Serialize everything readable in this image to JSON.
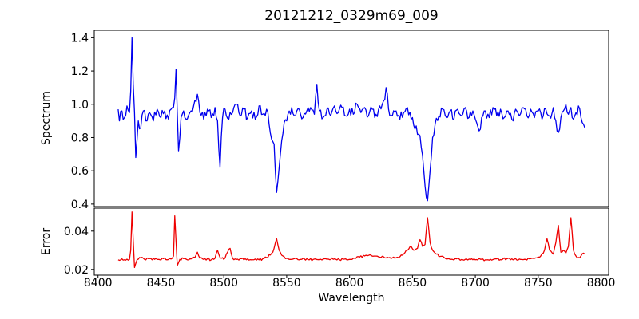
{
  "chart_data": {
    "type": "line",
    "title": "20121212_0329m69_009",
    "xlabel": "Wavelength",
    "xlim": [
      8397,
      8806
    ],
    "xtick_values": [
      8400,
      8450,
      8500,
      8550,
      8600,
      8650,
      8700,
      8750,
      8800
    ],
    "xtick_labels": [
      "8400",
      "8450",
      "8500",
      "8550",
      "8600",
      "8650",
      "8700",
      "8750",
      "8800"
    ],
    "grid": false,
    "legend": "none",
    "frame_color": "#000000",
    "noise_seed": 1234,
    "panels": [
      {
        "name": "spectrum",
        "ylabel": "Spectrum",
        "ylim": [
          0.385,
          1.445
        ],
        "ytick_values": [
          0.4,
          0.6,
          0.8,
          1.0,
          1.2,
          1.4
        ],
        "ytick_labels": [
          "0.4",
          "0.6",
          "0.8",
          "1.0",
          "1.2",
          "1.4"
        ],
        "line_color": "#0000ee",
        "noise_amplitude": 0.034,
        "sample_step": 1,
        "anchors": [
          [
            8416,
            0.97
          ],
          [
            8417,
            0.9
          ],
          [
            8419,
            0.96
          ],
          [
            8421,
            0.92
          ],
          [
            8423,
            0.99
          ],
          [
            8425,
            0.95
          ],
          [
            8426,
            1.08
          ],
          [
            8427,
            1.4
          ],
          [
            8428,
            1.12
          ],
          [
            8429,
            0.95
          ],
          [
            8430,
            0.68
          ],
          [
            8432,
            0.9
          ],
          [
            8434,
            0.86
          ],
          [
            8436,
            0.96
          ],
          [
            8438,
            0.9
          ],
          [
            8441,
            0.95
          ],
          [
            8444,
            0.9
          ],
          [
            8447,
            0.97
          ],
          [
            8450,
            0.92
          ],
          [
            8453,
            0.96
          ],
          [
            8456,
            0.91
          ],
          [
            8459,
            0.98
          ],
          [
            8461,
            1.04
          ],
          [
            8462,
            1.21
          ],
          [
            8463,
            0.95
          ],
          [
            8464,
            0.72
          ],
          [
            8466,
            0.92
          ],
          [
            8468,
            0.96
          ],
          [
            8470,
            0.91
          ],
          [
            8473,
            0.95
          ],
          [
            8476,
            0.99
          ],
          [
            8479,
            1.06
          ],
          [
            8481,
            0.95
          ],
          [
            8484,
            0.91
          ],
          [
            8487,
            0.97
          ],
          [
            8490,
            0.92
          ],
          [
            8493,
            0.98
          ],
          [
            8495,
            0.9
          ],
          [
            8497,
            0.62
          ],
          [
            8499,
            0.92
          ],
          [
            8501,
            0.97
          ],
          [
            8504,
            0.91
          ],
          [
            8507,
            0.95
          ],
          [
            8510,
            1.0
          ],
          [
            8513,
            0.93
          ],
          [
            8516,
            0.97
          ],
          [
            8519,
            0.92
          ],
          [
            8522,
            0.96
          ],
          [
            8525,
            0.91
          ],
          [
            8528,
            0.99
          ],
          [
            8531,
            0.94
          ],
          [
            8534,
            0.97
          ],
          [
            8536,
            0.88
          ],
          [
            8538,
            0.79
          ],
          [
            8540,
            0.76
          ],
          [
            8542,
            0.47
          ],
          [
            8544,
            0.62
          ],
          [
            8546,
            0.78
          ],
          [
            8548,
            0.89
          ],
          [
            8551,
            0.94
          ],
          [
            8554,
            0.98
          ],
          [
            8557,
            0.93
          ],
          [
            8560,
            0.97
          ],
          [
            8563,
            0.92
          ],
          [
            8566,
            0.96
          ],
          [
            8569,
            0.98
          ],
          [
            8572,
            0.94
          ],
          [
            8574,
            1.12
          ],
          [
            8576,
            0.96
          ],
          [
            8579,
            0.92
          ],
          [
            8582,
            0.97
          ],
          [
            8585,
            0.93
          ],
          [
            8588,
            0.99
          ],
          [
            8591,
            0.95
          ],
          [
            8594,
            0.98
          ],
          [
            8597,
            0.93
          ],
          [
            8600,
            0.97
          ],
          [
            8603,
            0.94
          ],
          [
            8606,
            1.0
          ],
          [
            8609,
            0.95
          ],
          [
            8612,
            0.98
          ],
          [
            8615,
            0.93
          ],
          [
            8618,
            0.97
          ],
          [
            8621,
            0.94
          ],
          [
            8624,
            0.99
          ],
          [
            8627,
            1.02
          ],
          [
            8629,
            1.1
          ],
          [
            8631,
            0.97
          ],
          [
            8634,
            0.93
          ],
          [
            8637,
            0.96
          ],
          [
            8640,
            0.91
          ],
          [
            8643,
            0.95
          ],
          [
            8646,
            0.98
          ],
          [
            8649,
            0.91
          ],
          [
            8652,
            0.85
          ],
          [
            8655,
            0.82
          ],
          [
            8657,
            0.74
          ],
          [
            8659,
            0.6
          ],
          [
            8661,
            0.44
          ],
          [
            8662,
            0.42
          ],
          [
            8664,
            0.6
          ],
          [
            8666,
            0.8
          ],
          [
            8668,
            0.88
          ],
          [
            8671,
            0.93
          ],
          [
            8674,
            0.97
          ],
          [
            8677,
            0.92
          ],
          [
            8680,
            0.96
          ],
          [
            8683,
            0.91
          ],
          [
            8686,
            0.97
          ],
          [
            8689,
            0.93
          ],
          [
            8692,
            0.98
          ],
          [
            8695,
            0.92
          ],
          [
            8698,
            0.96
          ],
          [
            8701,
            0.89
          ],
          [
            8703,
            0.84
          ],
          [
            8705,
            0.92
          ],
          [
            8708,
            0.96
          ],
          [
            8711,
            0.92
          ],
          [
            8714,
            0.98
          ],
          [
            8717,
            0.93
          ],
          [
            8720,
            0.97
          ],
          [
            8723,
            0.92
          ],
          [
            8726,
            0.96
          ],
          [
            8729,
            0.91
          ],
          [
            8732,
            0.97
          ],
          [
            8735,
            0.93
          ],
          [
            8738,
            0.98
          ],
          [
            8741,
            0.93
          ],
          [
            8744,
            0.97
          ],
          [
            8747,
            0.92
          ],
          [
            8750,
            0.96
          ],
          [
            8753,
            0.91
          ],
          [
            8756,
            0.97
          ],
          [
            8759,
            0.93
          ],
          [
            8762,
            0.98
          ],
          [
            8764,
            0.9
          ],
          [
            8766,
            0.83
          ],
          [
            8768,
            0.92
          ],
          [
            8770,
            0.96
          ],
          [
            8772,
            1.0
          ],
          [
            8774,
            0.94
          ],
          [
            8776,
            0.98
          ],
          [
            8778,
            0.91
          ],
          [
            8780,
            0.95
          ],
          [
            8782,
            0.99
          ],
          [
            8784,
            0.92
          ],
          [
            8786,
            0.88
          ],
          [
            8787,
            0.86
          ]
        ]
      },
      {
        "name": "error",
        "ylabel": "Error",
        "ylim": [
          0.017,
          0.052
        ],
        "ytick_values": [
          0.02,
          0.04
        ],
        "ytick_labels": [
          "0.02",
          "0.04"
        ],
        "line_color": "#ee0000",
        "noise_amplitude": 0.0007,
        "sample_step": 1,
        "anchors": [
          [
            8416,
            0.025
          ],
          [
            8419,
            0.0255
          ],
          [
            8422,
            0.0248
          ],
          [
            8425,
            0.0252
          ],
          [
            8426,
            0.03
          ],
          [
            8427,
            0.05
          ],
          [
            8428,
            0.035
          ],
          [
            8429,
            0.021
          ],
          [
            8431,
            0.025
          ],
          [
            8434,
            0.026
          ],
          [
            8437,
            0.0252
          ],
          [
            8440,
            0.0256
          ],
          [
            8443,
            0.025
          ],
          [
            8446,
            0.0258
          ],
          [
            8449,
            0.0251
          ],
          [
            8452,
            0.0256
          ],
          [
            8455,
            0.025
          ],
          [
            8458,
            0.0254
          ],
          [
            8460,
            0.027
          ],
          [
            8461,
            0.048
          ],
          [
            8463,
            0.022
          ],
          [
            8465,
            0.0252
          ],
          [
            8468,
            0.0256
          ],
          [
            8471,
            0.025
          ],
          [
            8474,
            0.0255
          ],
          [
            8477,
            0.0262
          ],
          [
            8479,
            0.029
          ],
          [
            8481,
            0.0258
          ],
          [
            8484,
            0.0252
          ],
          [
            8487,
            0.0256
          ],
          [
            8490,
            0.025
          ],
          [
            8493,
            0.0258
          ],
          [
            8495,
            0.03
          ],
          [
            8497,
            0.0262
          ],
          [
            8500,
            0.0252
          ],
          [
            8503,
            0.029
          ],
          [
            8505,
            0.031
          ],
          [
            8507,
            0.0258
          ],
          [
            8510,
            0.0252
          ],
          [
            8513,
            0.0256
          ],
          [
            8516,
            0.025
          ],
          [
            8519,
            0.0255
          ],
          [
            8522,
            0.025
          ],
          [
            8525,
            0.0254
          ],
          [
            8528,
            0.025
          ],
          [
            8531,
            0.0256
          ],
          [
            8534,
            0.0262
          ],
          [
            8537,
            0.0275
          ],
          [
            8539,
            0.029
          ],
          [
            8542,
            0.036
          ],
          [
            8544,
            0.03
          ],
          [
            8547,
            0.027
          ],
          [
            8550,
            0.0258
          ],
          [
            8553,
            0.0252
          ],
          [
            8556,
            0.0256
          ],
          [
            8560,
            0.025
          ],
          [
            8564,
            0.0255
          ],
          [
            8568,
            0.025
          ],
          [
            8572,
            0.0254
          ],
          [
            8576,
            0.025
          ],
          [
            8580,
            0.0256
          ],
          [
            8584,
            0.0251
          ],
          [
            8588,
            0.0255
          ],
          [
            8592,
            0.025
          ],
          [
            8596,
            0.0254
          ],
          [
            8600,
            0.0252
          ],
          [
            8604,
            0.0258
          ],
          [
            8608,
            0.0264
          ],
          [
            8612,
            0.027
          ],
          [
            8616,
            0.0276
          ],
          [
            8620,
            0.027
          ],
          [
            8624,
            0.0264
          ],
          [
            8628,
            0.026
          ],
          [
            8632,
            0.0262
          ],
          [
            8636,
            0.0258
          ],
          [
            8640,
            0.0266
          ],
          [
            8643,
            0.028
          ],
          [
            8646,
            0.03
          ],
          [
            8649,
            0.032
          ],
          [
            8651,
            0.03
          ],
          [
            8654,
            0.031
          ],
          [
            8656,
            0.0355
          ],
          [
            8658,
            0.032
          ],
          [
            8660,
            0.033
          ],
          [
            8662,
            0.047
          ],
          [
            8664,
            0.034
          ],
          [
            8666,
            0.03
          ],
          [
            8669,
            0.028
          ],
          [
            8672,
            0.0268
          ],
          [
            8676,
            0.0258
          ],
          [
            8680,
            0.0252
          ],
          [
            8685,
            0.0255
          ],
          [
            8690,
            0.025
          ],
          [
            8695,
            0.0254
          ],
          [
            8700,
            0.025
          ],
          [
            8705,
            0.0253
          ],
          [
            8710,
            0.025
          ],
          [
            8715,
            0.0254
          ],
          [
            8720,
            0.0251
          ],
          [
            8725,
            0.0255
          ],
          [
            8730,
            0.025
          ],
          [
            8735,
            0.0254
          ],
          [
            8740,
            0.0252
          ],
          [
            8744,
            0.0256
          ],
          [
            8748,
            0.026
          ],
          [
            8752,
            0.027
          ],
          [
            8755,
            0.03
          ],
          [
            8757,
            0.036
          ],
          [
            8759,
            0.03
          ],
          [
            8762,
            0.028
          ],
          [
            8764,
            0.034
          ],
          [
            8766,
            0.043
          ],
          [
            8768,
            0.029
          ],
          [
            8770,
            0.03
          ],
          [
            8772,
            0.0285
          ],
          [
            8774,
            0.032
          ],
          [
            8776,
            0.047
          ],
          [
            8778,
            0.03
          ],
          [
            8780,
            0.027
          ],
          [
            8782,
            0.0262
          ],
          [
            8784,
            0.027
          ],
          [
            8786,
            0.0285
          ],
          [
            8787,
            0.028
          ]
        ]
      }
    ]
  }
}
